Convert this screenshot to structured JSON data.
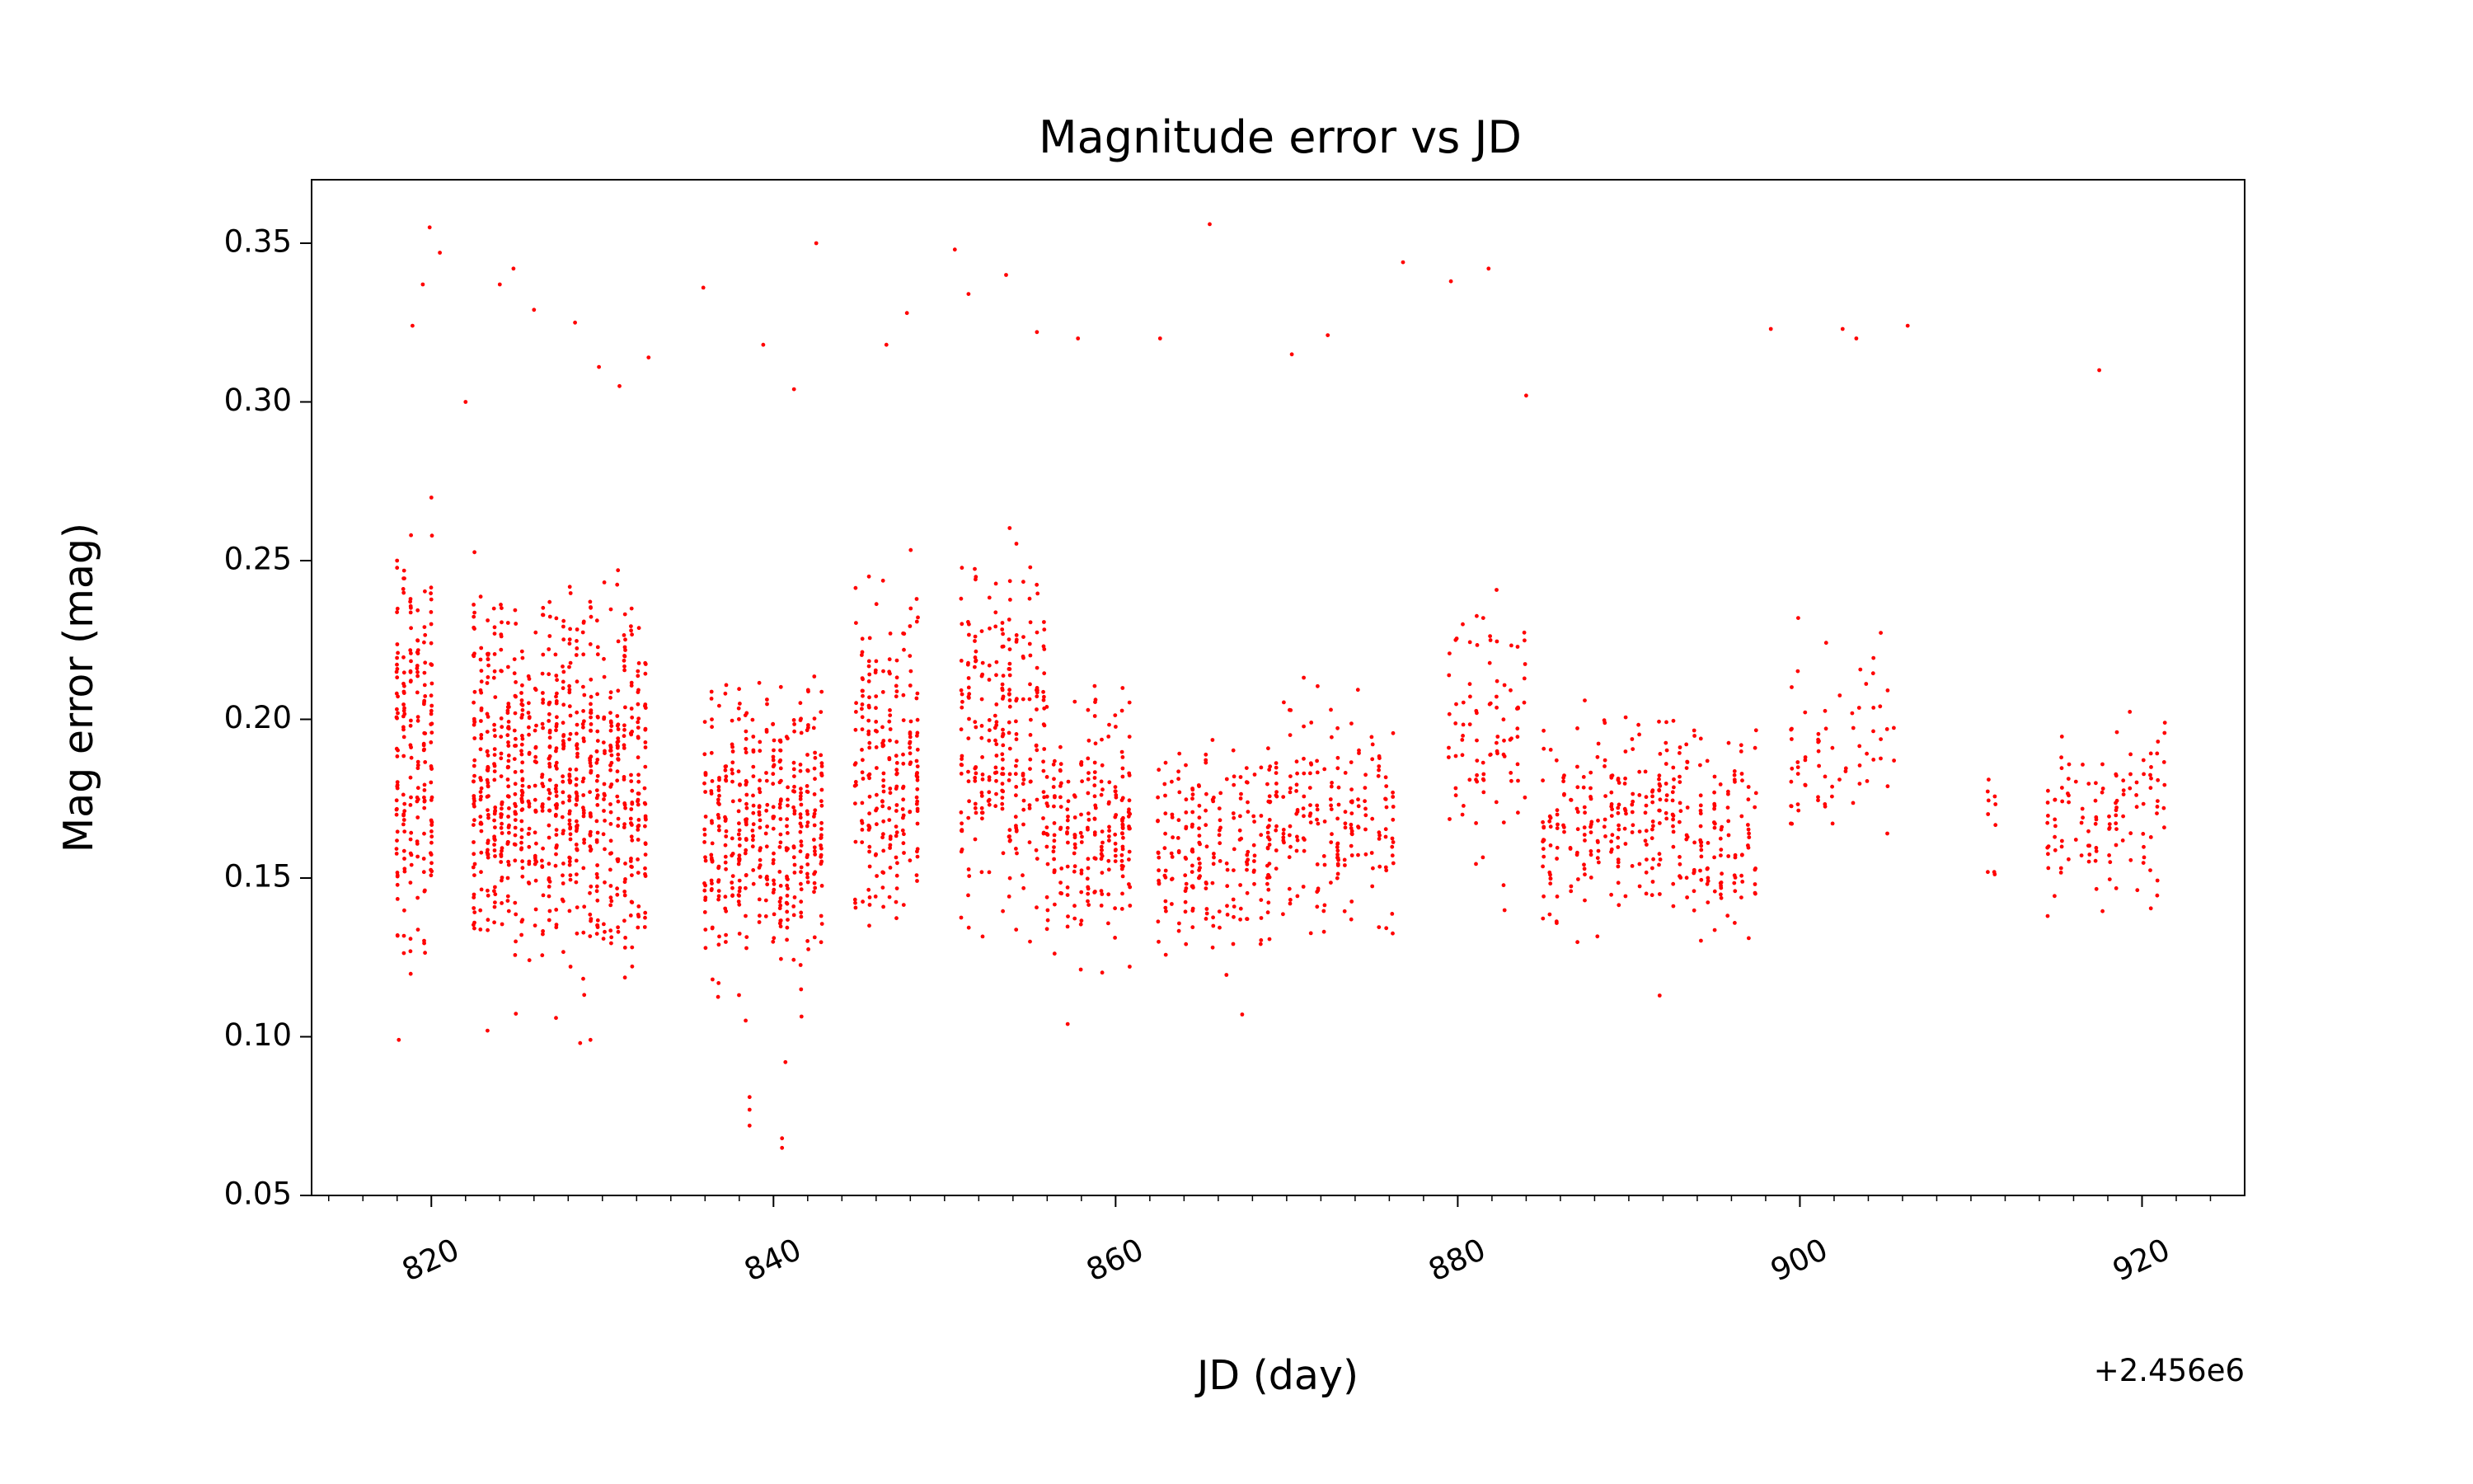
{
  "chart_data": {
    "type": "scatter",
    "title": "Magnitude error vs JD",
    "xlabel": "JD (day)",
    "ylabel": "Mag error (mag)",
    "x_offset_label": "+2.456e6",
    "xlim": [
      813,
      926
    ],
    "ylim": [
      0.05,
      0.37
    ],
    "xticks": [
      820,
      840,
      860,
      880,
      900,
      920
    ],
    "xtick_labels": [
      "820",
      "840",
      "860",
      "880",
      "900",
      "920"
    ],
    "yticks": [
      0.05,
      0.1,
      0.15,
      0.2,
      0.25,
      0.3,
      0.35
    ],
    "ytick_labels": [
      "0.05",
      "0.10",
      "0.15",
      "0.20",
      "0.25",
      "0.30",
      "0.35"
    ],
    "grid": false,
    "marker_color": "#ff0000",
    "clusters": [
      {
        "x": [
          818.0,
          820.0
        ],
        "y": [
          0.1,
          0.28
        ],
        "n": 200
      },
      {
        "x": [
          822.5,
          832.5
        ],
        "y": [
          0.1,
          0.26
        ],
        "n": 850
      },
      {
        "x": [
          836.0,
          843.0
        ],
        "y": [
          0.1,
          0.23
        ],
        "n": 420
      },
      {
        "x": [
          844.8,
          848.5
        ],
        "y": [
          0.11,
          0.26
        ],
        "n": 220
      },
      {
        "x": [
          851.0,
          856.0
        ],
        "y": [
          0.12,
          0.27
        ],
        "n": 260
      },
      {
        "x": [
          856.0,
          861.0
        ],
        "y": [
          0.11,
          0.22
        ],
        "n": 220
      },
      {
        "x": [
          862.5,
          869.0
        ],
        "y": [
          0.11,
          0.21
        ],
        "n": 200
      },
      {
        "x": [
          869.0,
          876.5
        ],
        "y": [
          0.12,
          0.22
        ],
        "n": 200
      },
      {
        "x": [
          879.5,
          884.0
        ],
        "y": [
          0.13,
          0.26
        ],
        "n": 90
      },
      {
        "x": [
          885.0,
          897.5
        ],
        "y": [
          0.12,
          0.21
        ],
        "n": 340
      },
      {
        "x": [
          899.5,
          905.5
        ],
        "y": [
          0.14,
          0.24
        ],
        "n": 70
      },
      {
        "x": [
          911.0,
          911.5
        ],
        "y": [
          0.14,
          0.19
        ],
        "n": 10
      },
      {
        "x": [
          914.5,
          921.5
        ],
        "y": [
          0.13,
          0.21
        ],
        "n": 120
      }
    ],
    "points": [
      {
        "x": 819.9,
        "y": 0.355
      },
      {
        "x": 819.5,
        "y": 0.337
      },
      {
        "x": 818.9,
        "y": 0.324
      },
      {
        "x": 820.5,
        "y": 0.347
      },
      {
        "x": 822.0,
        "y": 0.3
      },
      {
        "x": 824.0,
        "y": 0.337
      },
      {
        "x": 824.8,
        "y": 0.342
      },
      {
        "x": 826.0,
        "y": 0.329
      },
      {
        "x": 828.4,
        "y": 0.325
      },
      {
        "x": 829.8,
        "y": 0.311
      },
      {
        "x": 831.0,
        "y": 0.305
      },
      {
        "x": 832.7,
        "y": 0.314
      },
      {
        "x": 835.9,
        "y": 0.336
      },
      {
        "x": 839.4,
        "y": 0.318
      },
      {
        "x": 842.5,
        "y": 0.35
      },
      {
        "x": 841.2,
        "y": 0.304
      },
      {
        "x": 846.6,
        "y": 0.318
      },
      {
        "x": 847.8,
        "y": 0.328
      },
      {
        "x": 850.6,
        "y": 0.348
      },
      {
        "x": 851.4,
        "y": 0.334
      },
      {
        "x": 853.6,
        "y": 0.34
      },
      {
        "x": 855.4,
        "y": 0.322
      },
      {
        "x": 857.8,
        "y": 0.32
      },
      {
        "x": 862.6,
        "y": 0.32
      },
      {
        "x": 865.5,
        "y": 0.356
      },
      {
        "x": 870.3,
        "y": 0.315
      },
      {
        "x": 872.4,
        "y": 0.321
      },
      {
        "x": 876.8,
        "y": 0.344
      },
      {
        "x": 879.6,
        "y": 0.338
      },
      {
        "x": 881.8,
        "y": 0.342
      },
      {
        "x": 884.0,
        "y": 0.302
      },
      {
        "x": 898.3,
        "y": 0.323
      },
      {
        "x": 902.5,
        "y": 0.323
      },
      {
        "x": 903.3,
        "y": 0.32
      },
      {
        "x": 906.3,
        "y": 0.324
      },
      {
        "x": 917.5,
        "y": 0.31
      },
      {
        "x": 818.1,
        "y": 0.099
      },
      {
        "x": 838.6,
        "y": 0.081
      },
      {
        "x": 838.6,
        "y": 0.077
      },
      {
        "x": 838.6,
        "y": 0.072
      },
      {
        "x": 840.7,
        "y": 0.092
      },
      {
        "x": 840.5,
        "y": 0.068
      },
      {
        "x": 840.5,
        "y": 0.065
      },
      {
        "x": 828.7,
        "y": 0.098
      },
      {
        "x": 829.3,
        "y": 0.099
      },
      {
        "x": 857.2,
        "y": 0.104
      },
      {
        "x": 867.4,
        "y": 0.107
      },
      {
        "x": 891.8,
        "y": 0.113
      }
    ]
  }
}
